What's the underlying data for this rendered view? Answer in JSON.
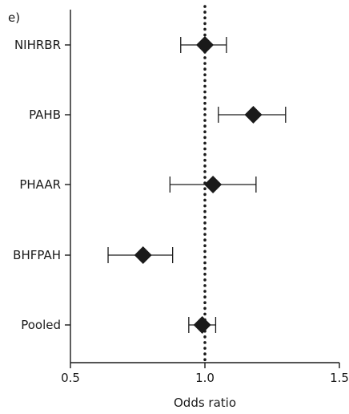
{
  "chart_data": {
    "type": "forest",
    "panel_label": "e)",
    "xlabel": "Odds ratio",
    "xlim": [
      0.5,
      1.5
    ],
    "xticks": [
      0.5,
      1.0,
      1.5
    ],
    "xtick_labels": [
      "0.5",
      "1.0",
      "1.5"
    ],
    "reference_line": 1.0,
    "reference_style": "dotted",
    "categories": [
      "NIHRBR",
      "PAHB",
      "PHAAR",
      "BHFPAH",
      "Pooled"
    ],
    "estimates": [
      1.0,
      1.18,
      1.03,
      0.77,
      0.99
    ],
    "ci_lower": [
      0.91,
      1.05,
      0.87,
      0.64,
      0.94
    ],
    "ci_upper": [
      1.08,
      1.3,
      1.19,
      0.88,
      1.04
    ],
    "marker": "diamond",
    "colors": {
      "marker": "#1a1a1a",
      "lines": "#1a1a1a"
    }
  }
}
